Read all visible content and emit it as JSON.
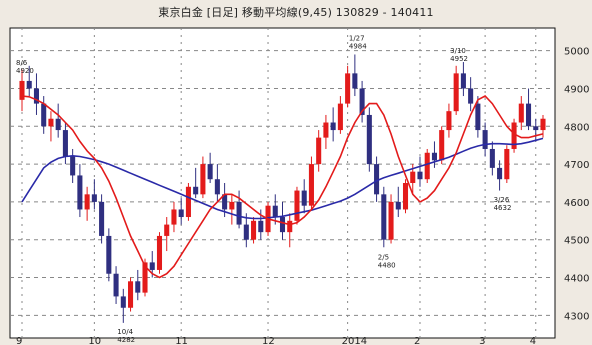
{
  "chart_data": {
    "type": "candlestick",
    "title": "東京白金 [日足] 移動平均線(9,45) 130829 - 140411",
    "yticks": [
      4300,
      4400,
      4500,
      4600,
      4700,
      4800,
      4900,
      5000
    ],
    "ylim": [
      4240,
      5060
    ],
    "xticks": [
      "9",
      "10",
      "11",
      "12",
      "2014",
      "2",
      "3",
      "4"
    ],
    "grid": true,
    "colors": {
      "up": "#e31b1b",
      "down": "#2f2f80",
      "ma_short": "#e31b1b",
      "ma_long": "#2a2aa8",
      "background": "#ffffff",
      "frame": "#111111"
    },
    "ohlc": [
      [
        4870,
        4950,
        4840,
        4920
      ],
      [
        4920,
        4960,
        4880,
        4900
      ],
      [
        4900,
        4940,
        4830,
        4860
      ],
      [
        4860,
        4880,
        4780,
        4800
      ],
      [
        4800,
        4840,
        4760,
        4820
      ],
      [
        4820,
        4860,
        4770,
        4790
      ],
      [
        4790,
        4810,
        4700,
        4720
      ],
      [
        4720,
        4740,
        4650,
        4670
      ],
      [
        4670,
        4700,
        4560,
        4580
      ],
      [
        4580,
        4640,
        4550,
        4620
      ],
      [
        4620,
        4660,
        4580,
        4600
      ],
      [
        4600,
        4620,
        4490,
        4510
      ],
      [
        4510,
        4530,
        4390,
        4410
      ],
      [
        4410,
        4430,
        4330,
        4350
      ],
      [
        4350,
        4370,
        4280,
        4320
      ],
      [
        4320,
        4400,
        4310,
        4390
      ],
      [
        4390,
        4420,
        4340,
        4360
      ],
      [
        4360,
        4450,
        4350,
        4440
      ],
      [
        4440,
        4470,
        4400,
        4420
      ],
      [
        4420,
        4520,
        4410,
        4510
      ],
      [
        4510,
        4560,
        4470,
        4540
      ],
      [
        4540,
        4600,
        4520,
        4580
      ],
      [
        4580,
        4610,
        4540,
        4560
      ],
      [
        4560,
        4650,
        4550,
        4640
      ],
      [
        4640,
        4690,
        4610,
        4620
      ],
      [
        4620,
        4720,
        4610,
        4700
      ],
      [
        4700,
        4730,
        4650,
        4660
      ],
      [
        4660,
        4700,
        4600,
        4620
      ],
      [
        4620,
        4650,
        4560,
        4580
      ],
      [
        4580,
        4620,
        4540,
        4600
      ],
      [
        4600,
        4630,
        4530,
        4540
      ],
      [
        4540,
        4570,
        4480,
        4500
      ],
      [
        4500,
        4560,
        4490,
        4550
      ],
      [
        4550,
        4580,
        4500,
        4520
      ],
      [
        4520,
        4600,
        4510,
        4590
      ],
      [
        4590,
        4620,
        4540,
        4560
      ],
      [
        4560,
        4600,
        4500,
        4520
      ],
      [
        4520,
        4570,
        4480,
        4550
      ],
      [
        4550,
        4640,
        4540,
        4630
      ],
      [
        4630,
        4660,
        4570,
        4590
      ],
      [
        4590,
        4720,
        4580,
        4700
      ],
      [
        4700,
        4790,
        4680,
        4770
      ],
      [
        4770,
        4830,
        4740,
        4810
      ],
      [
        4810,
        4850,
        4760,
        4790
      ],
      [
        4790,
        4880,
        4780,
        4860
      ],
      [
        4860,
        4960,
        4850,
        4940
      ],
      [
        4940,
        4990,
        4880,
        4900
      ],
      [
        4900,
        4920,
        4810,
        4830
      ],
      [
        4830,
        4850,
        4680,
        4700
      ],
      [
        4700,
        4720,
        4600,
        4620
      ],
      [
        4620,
        4640,
        4480,
        4500
      ],
      [
        4500,
        4620,
        4490,
        4600
      ],
      [
        4600,
        4640,
        4560,
        4580
      ],
      [
        4580,
        4660,
        4570,
        4650
      ],
      [
        4650,
        4700,
        4620,
        4680
      ],
      [
        4680,
        4720,
        4640,
        4660
      ],
      [
        4660,
        4740,
        4650,
        4730
      ],
      [
        4730,
        4760,
        4690,
        4710
      ],
      [
        4710,
        4800,
        4700,
        4790
      ],
      [
        4790,
        4860,
        4770,
        4840
      ],
      [
        4840,
        4960,
        4830,
        4940
      ],
      [
        4940,
        4970,
        4880,
        4900
      ],
      [
        4900,
        4930,
        4840,
        4860
      ],
      [
        4860,
        4880,
        4770,
        4790
      ],
      [
        4790,
        4810,
        4720,
        4740
      ],
      [
        4740,
        4760,
        4670,
        4690
      ],
      [
        4690,
        4710,
        4630,
        4660
      ],
      [
        4660,
        4750,
        4650,
        4740
      ],
      [
        4740,
        4820,
        4730,
        4810
      ],
      [
        4810,
        4880,
        4790,
        4860
      ],
      [
        4860,
        4900,
        4790,
        4800
      ],
      [
        4800,
        4820,
        4760,
        4790
      ],
      [
        4790,
        4830,
        4770,
        4820
      ]
    ],
    "ma_short": [
      4880,
      4878,
      4870,
      4860,
      4845,
      4830,
      4810,
      4790,
      4760,
      4735,
      4715,
      4690,
      4655,
      4610,
      4560,
      4510,
      4470,
      4430,
      4410,
      4400,
      4410,
      4430,
      4460,
      4490,
      4520,
      4550,
      4580,
      4600,
      4620,
      4620,
      4610,
      4595,
      4580,
      4565,
      4555,
      4550,
      4545,
      4540,
      4545,
      4560,
      4580,
      4605,
      4640,
      4680,
      4720,
      4770,
      4810,
      4840,
      4860,
      4860,
      4830,
      4780,
      4720,
      4670,
      4620,
      4600,
      4610,
      4630,
      4660,
      4690,
      4730,
      4780,
      4830,
      4870,
      4880,
      4860,
      4830,
      4800,
      4780,
      4770,
      4770,
      4775,
      4780
    ],
    "ma_long": [
      4600,
      4630,
      4660,
      4690,
      4705,
      4715,
      4720,
      4722,
      4720,
      4716,
      4712,
      4706,
      4700,
      4692,
      4684,
      4676,
      4668,
      4660,
      4652,
      4644,
      4636,
      4628,
      4620,
      4612,
      4604,
      4596,
      4588,
      4580,
      4574,
      4568,
      4562,
      4558,
      4556,
      4556,
      4558,
      4560,
      4562,
      4566,
      4570,
      4574,
      4578,
      4584,
      4590,
      4596,
      4602,
      4610,
      4620,
      4632,
      4644,
      4656,
      4664,
      4670,
      4676,
      4682,
      4688,
      4694,
      4700,
      4706,
      4712,
      4718,
      4726,
      4734,
      4742,
      4748,
      4752,
      4754,
      4754,
      4753,
      4752,
      4754,
      4758,
      4763,
      4768
    ],
    "annotations": [
      {
        "label": "8/6",
        "value": "4920"
      },
      {
        "label": "10/4",
        "value": "4282"
      },
      {
        "label": "1/27",
        "value": "4984"
      },
      {
        "label": "2/5",
        "value": "4480"
      },
      {
        "label": "3/10",
        "value": "4952"
      },
      {
        "label": "3/26",
        "value": "4632"
      }
    ]
  }
}
